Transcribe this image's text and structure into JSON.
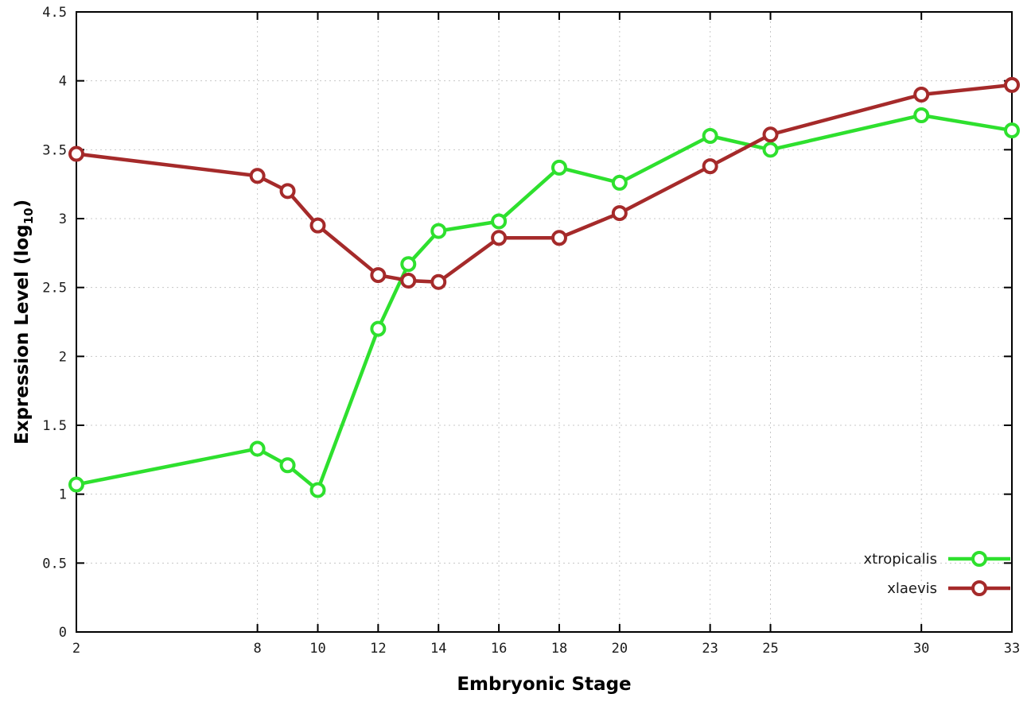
{
  "chart_data": {
    "type": "line",
    "title": "",
    "xlabel": "Embryonic Stage",
    "ylabel": "Expression Level (log10)",
    "ylabel_parts": {
      "prefix": "Expression Level (log",
      "sub": "10",
      "suffix": ")"
    },
    "xlim": [
      2,
      33
    ],
    "ylim": [
      0,
      4.5
    ],
    "grid": true,
    "x_ticks": [
      2,
      8,
      10,
      12,
      14,
      16,
      18,
      20,
      23,
      25,
      30,
      33
    ],
    "x_tick_labels": [
      "2",
      "8",
      "10",
      "12",
      "14",
      "16",
      "18",
      "20",
      "23",
      "25",
      "30",
      "33"
    ],
    "y_ticks": [
      0,
      0.5,
      1,
      1.5,
      2,
      2.5,
      3,
      3.5,
      4,
      4.5
    ],
    "y_tick_labels": [
      "0",
      "0.5",
      "1",
      "1.5",
      "2",
      "2.5",
      "3",
      "3.5",
      "4",
      "4.5"
    ],
    "x": [
      2,
      8,
      9,
      10,
      12,
      13,
      14,
      16,
      18,
      20,
      23,
      25,
      30,
      33
    ],
    "series": [
      {
        "name": "xtropicalis",
        "color": "#2ee02e",
        "values": [
          1.07,
          1.33,
          1.21,
          1.03,
          2.2,
          2.67,
          2.91,
          2.98,
          3.37,
          3.26,
          3.6,
          3.5,
          3.75,
          3.64
        ]
      },
      {
        "name": "xlaevis",
        "color": "#a52a2a",
        "values": [
          3.47,
          3.31,
          3.2,
          2.95,
          2.59,
          2.55,
          2.54,
          2.86,
          2.86,
          3.04,
          3.38,
          3.61,
          3.9,
          3.97
        ]
      }
    ],
    "legend": {
      "position": "bottom-right",
      "entries": [
        "xtropicalis",
        "xlaevis"
      ]
    },
    "style": {
      "grid_color": "#c8c8c8",
      "border_color": "#000000",
      "background": "#ffffff",
      "marker": "open-circle"
    }
  }
}
